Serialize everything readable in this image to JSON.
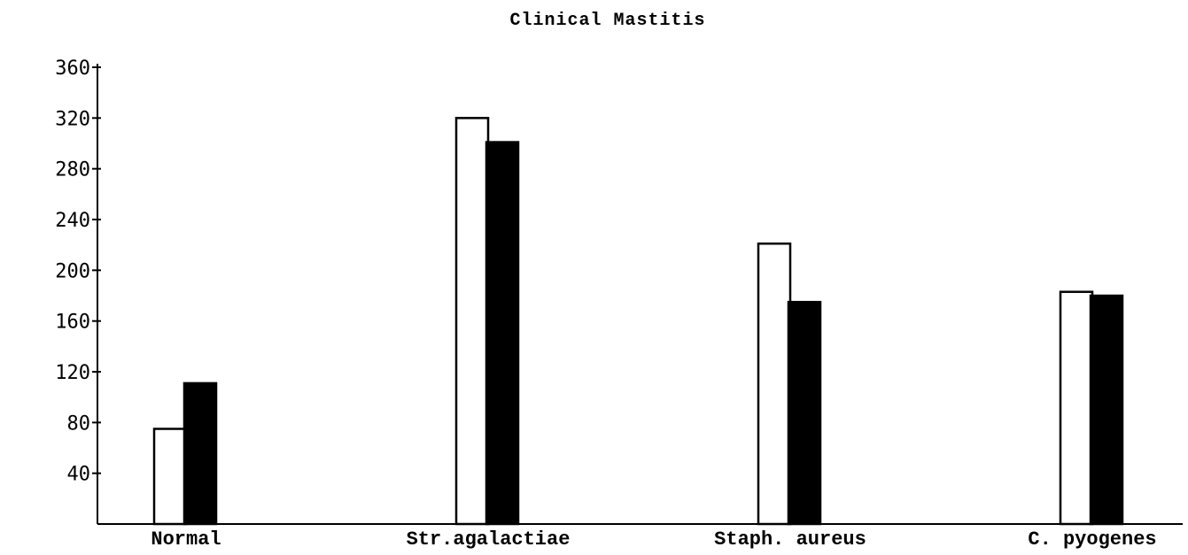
{
  "chart_data": {
    "type": "bar",
    "title": "Clinical Mastitis",
    "xlabel": "",
    "ylabel": "",
    "categories": [
      "Normal",
      "Str.agalactiae",
      "Staph. aureus",
      "C. pyogenes"
    ],
    "series": [
      {
        "values": [
          75,
          320,
          221,
          183
        ]
      },
      {
        "values": [
          111,
          301,
          175,
          180
        ]
      }
    ],
    "ylim": [
      0,
      360
    ],
    "yticks": [
      40,
      80,
      120,
      160,
      200,
      240,
      280,
      320,
      360
    ],
    "grid": false,
    "legend": "none",
    "colors": [
      "#ffffff",
      "#000000"
    ]
  }
}
